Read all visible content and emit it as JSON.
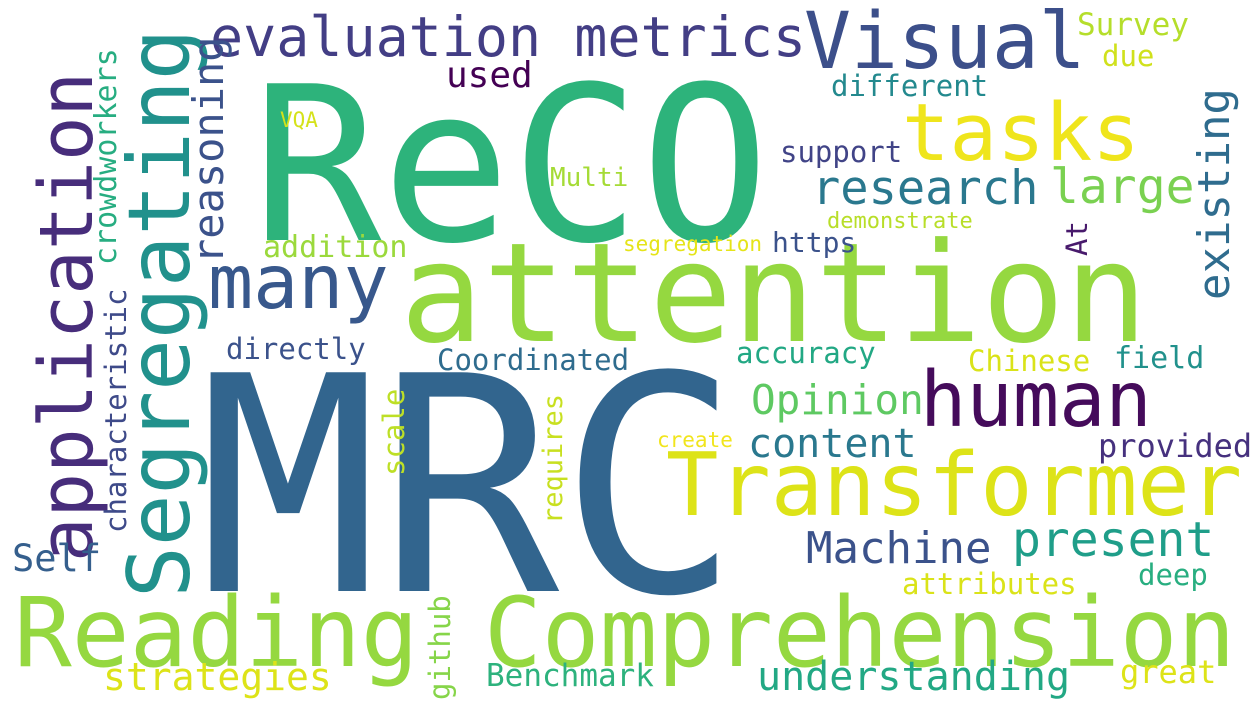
{
  "words": [
    {
      "id": "reco",
      "text": "ReCO",
      "color": "#2db37b"
    },
    {
      "id": "mrc",
      "text": "MRC",
      "color": "#32658e"
    },
    {
      "id": "attention",
      "text": "attention",
      "color": "#95d840"
    },
    {
      "id": "reading",
      "text": "Reading",
      "color": "#95d840"
    },
    {
      "id": "comprehension",
      "text": "Comprehension",
      "color": "#95d840"
    },
    {
      "id": "transformer",
      "text": "Transformer",
      "color": "#dde318"
    },
    {
      "id": "human",
      "text": "human",
      "color": "#450b5b"
    },
    {
      "id": "tasks",
      "text": "tasks",
      "color": "#efe51c"
    },
    {
      "id": "visual",
      "text": "Visual",
      "color": "#3c4f8a"
    },
    {
      "id": "evaluation-metrics",
      "text": "evaluation metrics",
      "color": "#433e85"
    },
    {
      "id": "application",
      "text": "application",
      "color": "#472d7b"
    },
    {
      "id": "segregating",
      "text": "Segregating",
      "color": "#21918c"
    },
    {
      "id": "many",
      "text": "many",
      "color": "#38588c"
    },
    {
      "id": "research",
      "text": "research",
      "color": "#2a788e"
    },
    {
      "id": "large",
      "text": "large",
      "color": "#7ad151"
    },
    {
      "id": "existing",
      "text": "existing",
      "color": "#2f6c8e"
    },
    {
      "id": "reasoning",
      "text": "reasoning",
      "color": "#3b528b"
    },
    {
      "id": "crowdworkers",
      "text": "crowdworkers",
      "color": "#27ad81"
    },
    {
      "id": "characteristic",
      "text": "characteristic",
      "color": "#3e4a89"
    },
    {
      "id": "self",
      "text": "Self",
      "color": "#355f8d"
    },
    {
      "id": "directly",
      "text": "directly",
      "color": "#3b528b"
    },
    {
      "id": "addition",
      "text": "addition",
      "color": "#9bd93c"
    },
    {
      "id": "coordinated",
      "text": "Coordinated",
      "color": "#2f6c8e"
    },
    {
      "id": "accuracy",
      "text": "accuracy",
      "color": "#22a884"
    },
    {
      "id": "chinese",
      "text": "Chinese",
      "color": "#dae319"
    },
    {
      "id": "field",
      "text": "field",
      "color": "#21918c"
    },
    {
      "id": "opinion",
      "text": "Opinion",
      "color": "#5ec962"
    },
    {
      "id": "content",
      "text": "content",
      "color": "#2a788e"
    },
    {
      "id": "provided",
      "text": "provided",
      "color": "#46317e"
    },
    {
      "id": "machine",
      "text": "Machine",
      "color": "#3b528b"
    },
    {
      "id": "present",
      "text": "present",
      "color": "#1f9e89"
    },
    {
      "id": "attributes",
      "text": "attributes",
      "color": "#dae319"
    },
    {
      "id": "deep",
      "text": "deep",
      "color": "#28ae80"
    },
    {
      "id": "strategies",
      "text": "strategies",
      "color": "#dde318"
    },
    {
      "id": "benchmark",
      "text": "Benchmark",
      "color": "#2db27d"
    },
    {
      "id": "understanding",
      "text": "understanding",
      "color": "#22a884"
    },
    {
      "id": "great",
      "text": "great",
      "color": "#dde318"
    },
    {
      "id": "github",
      "text": "github",
      "color": "#86d549"
    },
    {
      "id": "requires",
      "text": "requires",
      "color": "#c8e020"
    },
    {
      "id": "scale",
      "text": "scale",
      "color": "#bddf26"
    },
    {
      "id": "create",
      "text": "create",
      "color": "#f1e51d"
    },
    {
      "id": "survey",
      "text": "Survey",
      "color": "#b5de2b"
    },
    {
      "id": "due",
      "text": "due",
      "color": "#d0e11c"
    },
    {
      "id": "used",
      "text": "used",
      "color": "#440154"
    },
    {
      "id": "different",
      "text": "different",
      "color": "#23898e"
    },
    {
      "id": "support",
      "text": "support",
      "color": "#414487"
    },
    {
      "id": "vqa",
      "text": "VQA",
      "color": "#d5e21a"
    },
    {
      "id": "multi",
      "text": "Multi",
      "color": "#a5db36"
    },
    {
      "id": "demonstrate",
      "text": "demonstrate",
      "color": "#b8de29"
    },
    {
      "id": "segregation",
      "text": "segregation",
      "color": "#e5e419"
    },
    {
      "id": "https",
      "text": "https",
      "color": "#3b528b"
    },
    {
      "id": "at",
      "text": "At",
      "color": "#481a6c"
    }
  ]
}
